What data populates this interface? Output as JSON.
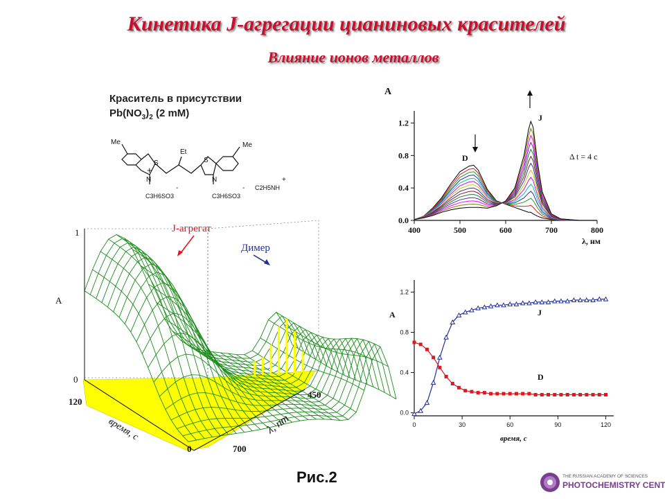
{
  "header": {
    "title": "Кинетика J-агрегации цианиновых красителей",
    "subtitle": "Влияние ионов металлов"
  },
  "caption": {
    "line1": "Краситель в присутствии",
    "line2_prefix": "Pb(NO",
    "line2_sub1": "3",
    "line2_mid": ")",
    "line2_sub2": "2",
    "line2_suffix": " (2 mM)"
  },
  "structure": {
    "me_left": "Me",
    "me_right": "Me",
    "s_left": "S",
    "s_right": "S",
    "n_left": "N",
    "n_right": "N",
    "et": "Et",
    "plus_left": "+",
    "plus_counter": "+",
    "minus_left": "-",
    "minus_right": "-",
    "sulfo_left": "C3H6SO3",
    "sulfo_right": "C3H6SO3",
    "counter_ion": "C2H5NH"
  },
  "figure_label": "Рис.2",
  "logo": {
    "line1": "THE RUSSIAN ACADEMY OF SCIENCES",
    "line2": "PHOTOCHEMISTRY CENTER"
  },
  "colors": {
    "title": "#c8102e",
    "surface_fill": "#ffff00",
    "surface_mesh": "#1a8c1a",
    "j_curve": "#1f2fa0",
    "d_curve": "#e0181e"
  },
  "chart_data": [
    {
      "type": "area",
      "kind": "3d-surface",
      "zlabel": "A",
      "zticks": [
        "0",
        "1"
      ],
      "time_label": "время, с",
      "time_ticks": [
        "120",
        "0"
      ],
      "wavelength_label": "λ, nm",
      "wavelength_ticks": [
        "450",
        "700"
      ],
      "annotations": [
        "J-агрегат",
        "Димер"
      ]
    },
    {
      "type": "line",
      "ylabel": "A",
      "xlabel": "λ, нм",
      "xlim": [
        400,
        800
      ],
      "ylim": [
        0,
        1.35
      ],
      "xticks": [
        "400",
        "500",
        "600",
        "700",
        "800"
      ],
      "yticks": [
        "0.0",
        "0.4",
        "0.8",
        "1.2"
      ],
      "annotations": [
        "J",
        "D",
        "Δ t = 4 с"
      ],
      "x": [
        400,
        420,
        440,
        460,
        480,
        500,
        520,
        530,
        540,
        560,
        580,
        600,
        620,
        640,
        650,
        655,
        660,
        670,
        680,
        700,
        720,
        760,
        800
      ],
      "series_count": 14,
      "first_spectrum": [
        0.01,
        0.05,
        0.15,
        0.28,
        0.45,
        0.6,
        0.67,
        0.68,
        0.62,
        0.38,
        0.24,
        0.2,
        0.16,
        0.12,
        0.1,
        0.1,
        0.08,
        0.05,
        0.03,
        0.01,
        0,
        0,
        0
      ],
      "last_spectrum": [
        0.01,
        0.03,
        0.06,
        0.1,
        0.13,
        0.15,
        0.16,
        0.16,
        0.16,
        0.15,
        0.18,
        0.24,
        0.4,
        0.8,
        1.12,
        1.22,
        1.15,
        0.7,
        0.35,
        0.08,
        0.02,
        0,
        0
      ]
    },
    {
      "type": "line",
      "ylabel": "A",
      "xlabel": "время, с",
      "xlim": [
        0,
        125
      ],
      "ylim": [
        -0.03,
        1.32
      ],
      "xticks": [
        "0",
        "30",
        "60",
        "90",
        "120"
      ],
      "yticks": [
        "0.0",
        "0.4",
        "0.8",
        "1.2"
      ],
      "series": [
        {
          "name": "J",
          "marker": "triangle",
          "x": [
            0,
            4,
            8,
            12,
            16,
            20,
            24,
            28,
            32,
            36,
            40,
            44,
            48,
            52,
            56,
            60,
            64,
            68,
            72,
            76,
            80,
            84,
            88,
            92,
            96,
            100,
            104,
            108,
            112,
            116,
            120
          ],
          "values": [
            -0.01,
            0.02,
            0.1,
            0.3,
            0.55,
            0.75,
            0.9,
            0.97,
            1.0,
            1.02,
            1.04,
            1.05,
            1.06,
            1.07,
            1.07,
            1.08,
            1.08,
            1.09,
            1.09,
            1.1,
            1.1,
            1.1,
            1.11,
            1.11,
            1.11,
            1.12,
            1.12,
            1.12,
            1.12,
            1.13,
            1.13
          ]
        },
        {
          "name": "D",
          "marker": "square",
          "x": [
            0,
            4,
            8,
            12,
            16,
            20,
            24,
            28,
            32,
            36,
            40,
            44,
            48,
            52,
            56,
            60,
            64,
            68,
            72,
            76,
            80,
            84,
            88,
            92,
            96,
            100,
            104,
            108,
            112,
            116,
            120
          ],
          "values": [
            0.7,
            0.68,
            0.63,
            0.55,
            0.45,
            0.36,
            0.29,
            0.25,
            0.22,
            0.21,
            0.2,
            0.2,
            0.19,
            0.19,
            0.19,
            0.19,
            0.19,
            0.19,
            0.19,
            0.18,
            0.18,
            0.18,
            0.18,
            0.18,
            0.18,
            0.18,
            0.18,
            0.18,
            0.18,
            0.18,
            0.18
          ]
        }
      ]
    }
  ]
}
